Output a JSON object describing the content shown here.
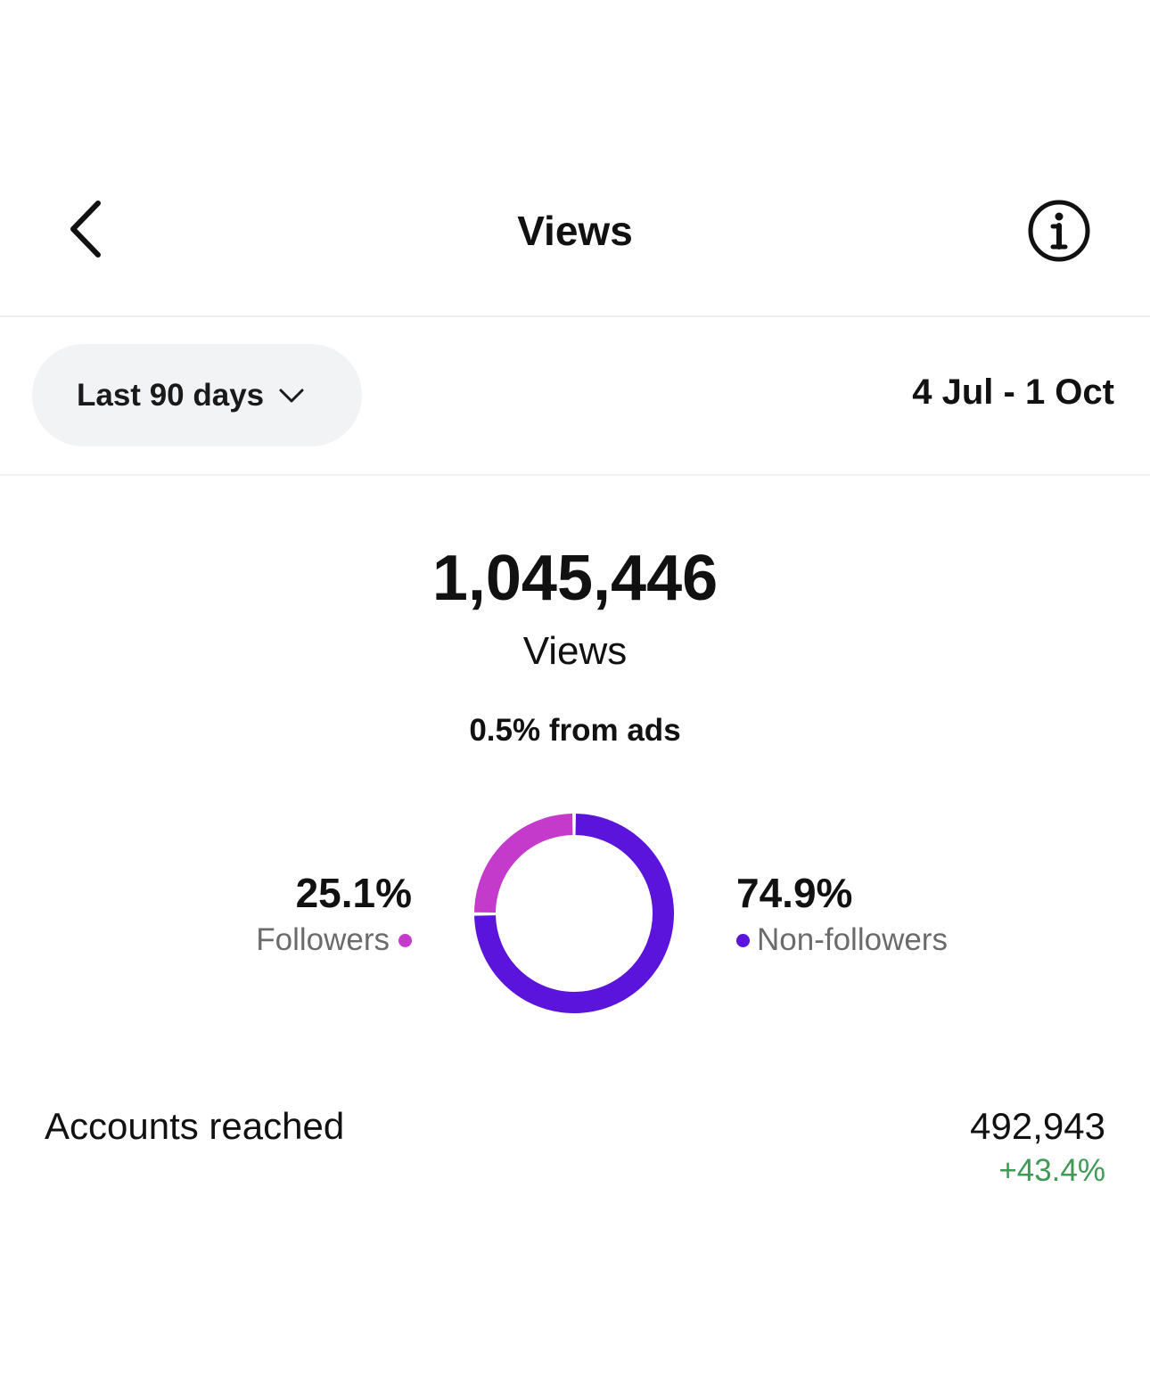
{
  "header": {
    "title": "Views",
    "back_icon": "chevron-left-icon",
    "info_icon": "info-icon"
  },
  "filter": {
    "range_label": "Last 90 days",
    "chevron_icon": "chevron-down-icon",
    "date_range": "4 Jul - 1 Oct"
  },
  "summary": {
    "total": "1,045,446",
    "label": "Views",
    "ads_note": "0.5% from ads"
  },
  "breakdown": {
    "followers": {
      "percent": "25.1%",
      "label": "Followers",
      "value": 25.1,
      "color": "#c43bcb"
    },
    "non_followers": {
      "percent": "74.9%",
      "label": "Non-followers",
      "value": 74.9,
      "color": "#5b14dc"
    }
  },
  "accounts_reached": {
    "label": "Accounts reached",
    "value": "492,943",
    "change": "+43.4%",
    "change_color": "#3e9a54"
  }
}
